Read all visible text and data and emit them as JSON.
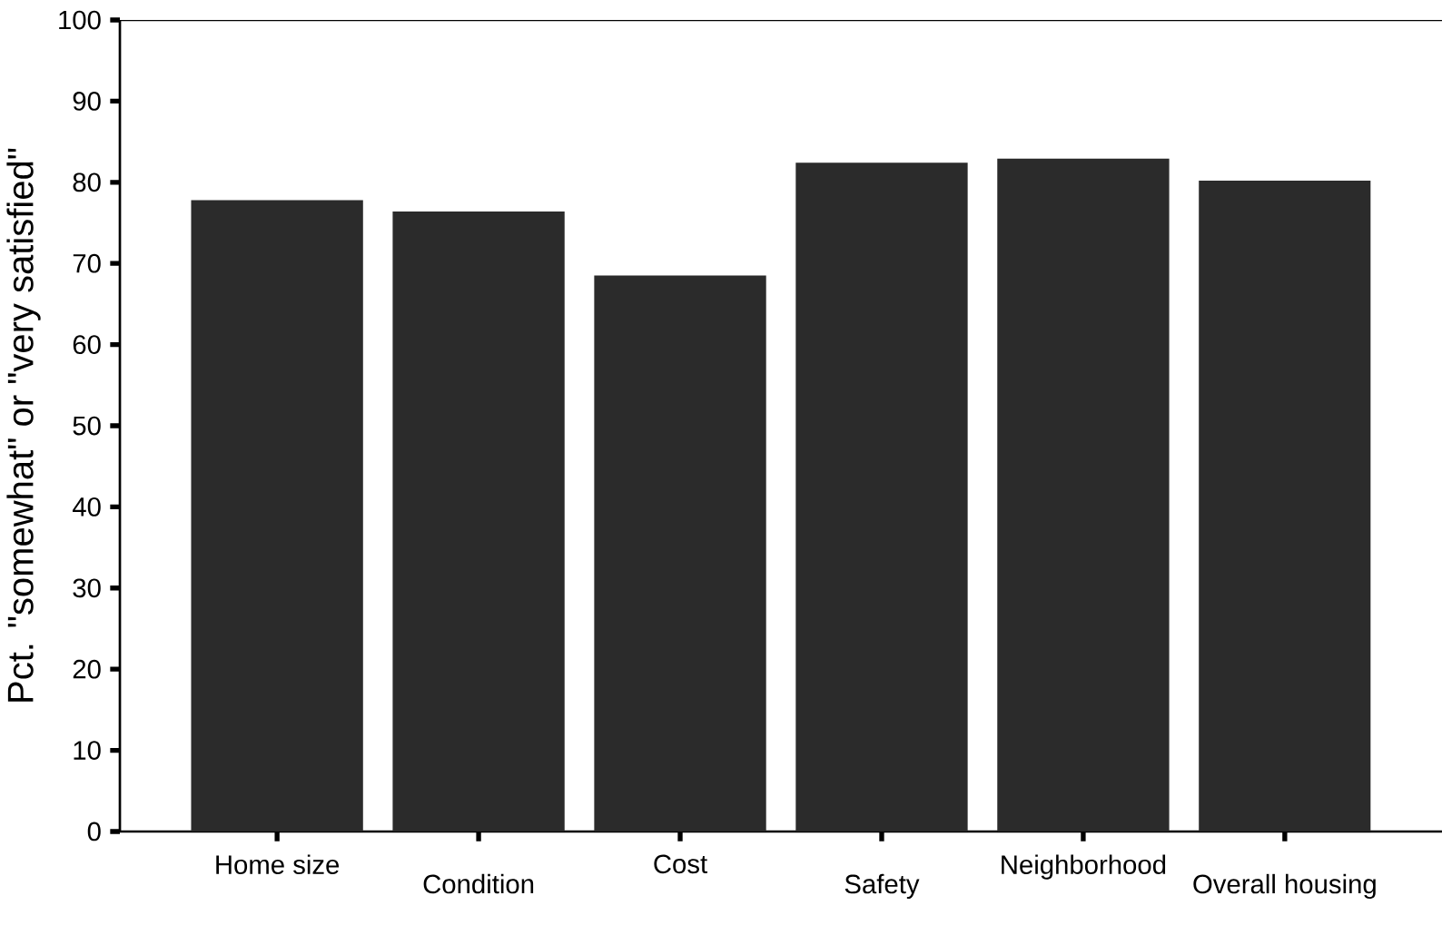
{
  "chart_data": {
    "type": "bar",
    "ylabel": "Pct. \"somewhat\" or \"very satisfied\"",
    "categories": [
      "Home size",
      "Condition",
      "Cost",
      "Safety",
      "Neighborhood",
      "Overall housing"
    ],
    "values": [
      77.8,
      76.4,
      68.5,
      82.4,
      82.9,
      80.2
    ],
    "color": "#2b2b2b",
    "ylim": [
      0,
      100
    ],
    "yticks": [
      0,
      10,
      20,
      30,
      40,
      50,
      60,
      70,
      80,
      90,
      100
    ]
  }
}
